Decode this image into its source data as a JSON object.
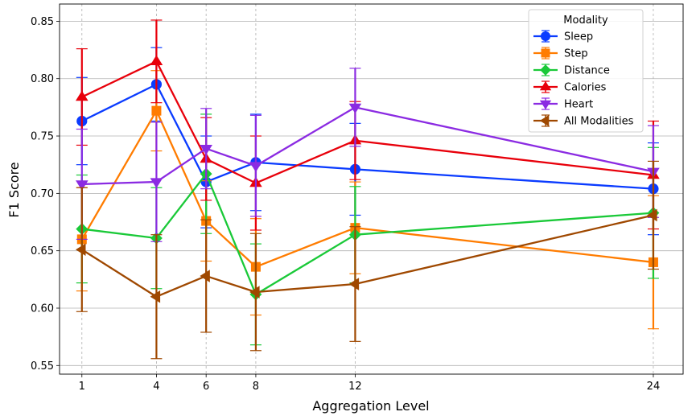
{
  "chart_data": {
    "type": "line",
    "xlabel": "Aggregation Level",
    "ylabel": "F1 Score",
    "x": [
      1,
      4,
      6,
      8,
      12,
      24
    ],
    "xticks": [
      "1",
      "4",
      "6",
      "8",
      "12",
      "24"
    ],
    "xlim": [
      0.1,
      25.2
    ],
    "ylim": [
      0.5425,
      0.865
    ],
    "yticks": [
      "0.55",
      "0.60",
      "0.65",
      "0.70",
      "0.75",
      "0.80",
      "0.85"
    ],
    "ytick_values": [
      0.55,
      0.6,
      0.65,
      0.7,
      0.75,
      0.8,
      0.85
    ],
    "grid": "y solid, x dashed",
    "legend": {
      "title": "Modality",
      "placement": "top-right"
    },
    "series": [
      {
        "name": "Sleep",
        "color": "#0a3bff",
        "marker": "circle",
        "values": [
          0.763,
          0.795,
          0.71,
          0.727,
          0.721,
          0.704
        ],
        "errors": [
          0.038,
          0.032,
          0.04,
          0.042,
          0.04,
          0.04
        ]
      },
      {
        "name": "Step",
        "color": "#ff7c00",
        "marker": "square",
        "values": [
          0.66,
          0.772,
          0.676,
          0.636,
          0.67,
          0.64
        ],
        "errors": [
          0.045,
          0.035,
          0.035,
          0.042,
          0.04,
          0.058
        ]
      },
      {
        "name": "Distance",
        "color": "#1ac938",
        "marker": "diamond",
        "values": [
          0.669,
          0.661,
          0.717,
          0.612,
          0.664,
          0.683
        ],
        "errors": [
          0.047,
          0.044,
          0.052,
          0.044,
          0.042,
          0.057
        ]
      },
      {
        "name": "Calories",
        "color": "#e8000b",
        "marker": "triangle-up",
        "values": [
          0.784,
          0.815,
          0.73,
          0.709,
          0.746,
          0.716
        ],
        "errors": [
          0.042,
          0.036,
          0.036,
          0.041,
          0.034,
          0.047
        ]
      },
      {
        "name": "Heart",
        "color": "#8b2be2",
        "marker": "triangle-down",
        "values": [
          0.708,
          0.71,
          0.739,
          0.724,
          0.775,
          0.719
        ],
        "errors": [
          0.048,
          0.052,
          0.035,
          0.044,
          0.034,
          0.04
        ]
      },
      {
        "name": "All Modalities",
        "color": "#9f4800",
        "marker": "triangle-left",
        "values": [
          0.651,
          0.61,
          0.628,
          0.614,
          0.621,
          0.681
        ],
        "errors": [
          0.054,
          0.054,
          0.049,
          0.051,
          0.05,
          0.047
        ]
      }
    ]
  }
}
